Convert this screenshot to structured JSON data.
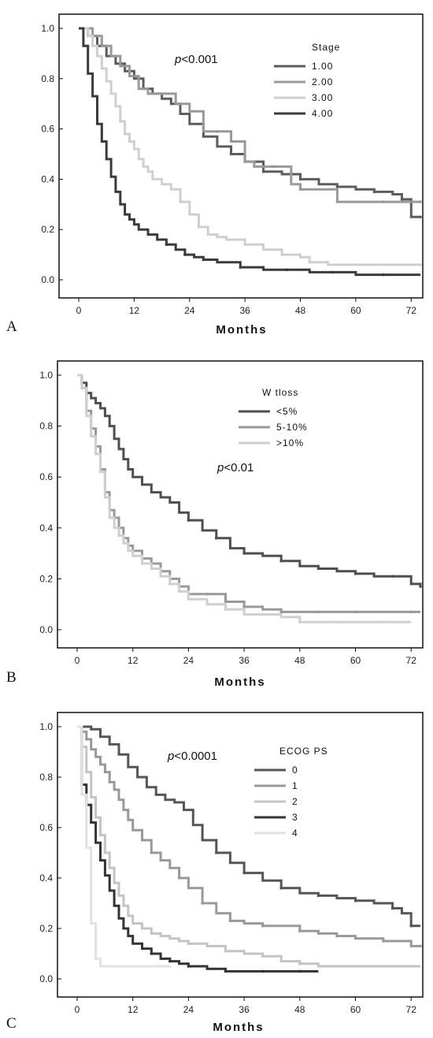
{
  "chart_data": [
    {
      "type": "line",
      "panel": "A",
      "xlabel": "Months",
      "xlim": [
        0,
        74
      ],
      "ylim": [
        0,
        1.0
      ],
      "xticks": [
        "0",
        "12",
        "24",
        "36",
        "48",
        "60",
        "72"
      ],
      "yticks": [
        "0.0",
        "0.2",
        "0.4",
        "0.6",
        "0.8",
        "1.0"
      ],
      "pvalue": {
        "prefix": "p",
        "text": "<0.001"
      },
      "legend": {
        "title": "Stage",
        "placement": "top-right"
      },
      "series": [
        {
          "name": "1.00",
          "color": "#5c5c5c",
          "x": [
            0,
            2,
            4,
            6,
            8,
            10,
            12,
            14,
            16,
            18,
            20,
            22,
            24,
            27,
            30,
            33,
            36,
            40,
            44,
            48,
            52,
            56,
            60,
            64,
            68,
            70,
            72,
            74
          ],
          "y": [
            1.0,
            0.97,
            0.93,
            0.89,
            0.86,
            0.83,
            0.8,
            0.76,
            0.74,
            0.72,
            0.7,
            0.66,
            0.62,
            0.57,
            0.53,
            0.5,
            0.47,
            0.43,
            0.42,
            0.4,
            0.38,
            0.37,
            0.36,
            0.35,
            0.34,
            0.32,
            0.25,
            0.25
          ]
        },
        {
          "name": "2.00",
          "color": "#999999",
          "x": [
            0,
            1,
            3,
            5,
            7,
            9,
            11,
            13,
            15,
            17,
            19,
            21,
            24,
            27,
            30,
            33,
            36,
            38,
            42,
            46,
            48,
            52,
            56,
            60,
            66,
            72,
            74
          ],
          "y": [
            1.0,
            1.0,
            0.97,
            0.93,
            0.89,
            0.85,
            0.81,
            0.76,
            0.74,
            0.74,
            0.74,
            0.7,
            0.67,
            0.59,
            0.59,
            0.55,
            0.47,
            0.45,
            0.45,
            0.38,
            0.36,
            0.36,
            0.31,
            0.31,
            0.31,
            0.31,
            0.31
          ]
        },
        {
          "name": "3.00",
          "color": "#cfcfcf",
          "x": [
            0,
            2,
            3,
            4,
            5,
            6,
            7,
            8,
            9,
            10,
            11,
            12,
            13,
            14,
            15,
            16,
            18,
            20,
            22,
            24,
            26,
            28,
            30,
            32,
            36,
            40,
            44,
            48,
            50,
            54,
            60,
            66,
            74
          ],
          "y": [
            1.0,
            0.97,
            0.93,
            0.89,
            0.84,
            0.79,
            0.74,
            0.69,
            0.63,
            0.58,
            0.55,
            0.52,
            0.48,
            0.45,
            0.43,
            0.4,
            0.38,
            0.36,
            0.31,
            0.26,
            0.21,
            0.18,
            0.17,
            0.16,
            0.14,
            0.12,
            0.1,
            0.09,
            0.07,
            0.06,
            0.06,
            0.06,
            0.06
          ]
        },
        {
          "name": "4.00",
          "color": "#3a3a3a",
          "x": [
            0,
            1,
            2,
            3,
            4,
            5,
            6,
            7,
            8,
            9,
            10,
            11,
            12,
            13,
            15,
            17,
            19,
            21,
            23,
            25,
            27,
            30,
            35,
            40,
            45,
            50,
            55,
            60,
            66,
            74
          ],
          "y": [
            1.0,
            0.93,
            0.82,
            0.73,
            0.62,
            0.55,
            0.48,
            0.41,
            0.35,
            0.3,
            0.26,
            0.24,
            0.22,
            0.2,
            0.18,
            0.16,
            0.14,
            0.12,
            0.1,
            0.09,
            0.08,
            0.07,
            0.05,
            0.04,
            0.04,
            0.03,
            0.03,
            0.02,
            0.02,
            0.02
          ]
        }
      ]
    },
    {
      "type": "line",
      "panel": "B",
      "xlabel": "Months",
      "xlim": [
        0,
        74
      ],
      "ylim": [
        0,
        1.0
      ],
      "xticks": [
        "0",
        "12",
        "24",
        "36",
        "48",
        "60",
        "72"
      ],
      "yticks": [
        "0.0",
        "0.2",
        "0.4",
        "0.6",
        "0.8",
        "1.0"
      ],
      "pvalue": {
        "prefix": "p",
        "text": "<0.01"
      },
      "legend": {
        "title": "W tloss",
        "placement": "top-right"
      },
      "series": [
        {
          "name": "<5%",
          "color": "#4f4f4f",
          "x": [
            0,
            1,
            2,
            3,
            4,
            5,
            6,
            7,
            8,
            9,
            10,
            11,
            12,
            14,
            16,
            18,
            20,
            22,
            24,
            27,
            30,
            33,
            36,
            40,
            44,
            48,
            52,
            56,
            60,
            64,
            68,
            72,
            74
          ],
          "y": [
            1.0,
            0.97,
            0.93,
            0.91,
            0.89,
            0.87,
            0.84,
            0.8,
            0.75,
            0.71,
            0.67,
            0.63,
            0.6,
            0.57,
            0.54,
            0.52,
            0.5,
            0.46,
            0.43,
            0.39,
            0.36,
            0.32,
            0.3,
            0.29,
            0.27,
            0.25,
            0.24,
            0.23,
            0.22,
            0.21,
            0.21,
            0.18,
            0.17
          ]
        },
        {
          "name": "5-10%",
          "color": "#999999",
          "x": [
            0,
            1,
            2,
            3,
            4,
            5,
            6,
            7,
            8,
            9,
            10,
            11,
            12,
            14,
            16,
            18,
            20,
            22,
            24,
            28,
            32,
            36,
            40,
            44,
            48,
            52,
            56,
            60,
            66,
            72,
            74
          ],
          "y": [
            1.0,
            0.95,
            0.86,
            0.79,
            0.72,
            0.63,
            0.54,
            0.47,
            0.44,
            0.4,
            0.36,
            0.33,
            0.31,
            0.28,
            0.26,
            0.23,
            0.2,
            0.17,
            0.14,
            0.14,
            0.11,
            0.09,
            0.08,
            0.07,
            0.07,
            0.07,
            0.07,
            0.07,
            0.07,
            0.07,
            0.07
          ]
        },
        {
          "name": ">10%",
          "color": "#cfcfcf",
          "x": [
            0,
            1,
            2,
            3,
            4,
            5,
            6,
            7,
            8,
            9,
            10,
            11,
            12,
            14,
            16,
            18,
            20,
            22,
            24,
            28,
            32,
            36,
            40,
            44,
            48,
            52,
            56,
            60,
            66,
            72
          ],
          "y": [
            1.0,
            0.95,
            0.84,
            0.76,
            0.69,
            0.62,
            0.52,
            0.44,
            0.4,
            0.37,
            0.34,
            0.31,
            0.29,
            0.26,
            0.24,
            0.21,
            0.18,
            0.15,
            0.12,
            0.1,
            0.08,
            0.06,
            0.06,
            0.05,
            0.03,
            0.03,
            0.03,
            0.03,
            0.03,
            0.03
          ]
        }
      ]
    },
    {
      "type": "line",
      "panel": "C",
      "xlabel": "Months",
      "xlim": [
        0,
        74
      ],
      "ylim": [
        0,
        1.0
      ],
      "xticks": [
        "0",
        "12",
        "24",
        "36",
        "48",
        "60",
        "72"
      ],
      "yticks": [
        "0.0",
        "0.2",
        "0.4",
        "0.6",
        "0.8",
        "1.0"
      ],
      "pvalue": {
        "prefix": "p",
        "text": "<0.0001"
      },
      "legend": {
        "title": "ECOG PS",
        "placement": "top-right"
      },
      "series": [
        {
          "name": "0",
          "color": "#555555",
          "x": [
            0,
            2,
            3,
            5,
            7,
            9,
            11,
            13,
            15,
            17,
            19,
            21,
            23,
            25,
            27,
            30,
            33,
            36,
            40,
            44,
            48,
            52,
            56,
            60,
            64,
            68,
            70,
            72,
            74
          ],
          "y": [
            1.0,
            1.0,
            0.99,
            0.96,
            0.93,
            0.89,
            0.84,
            0.8,
            0.76,
            0.73,
            0.71,
            0.7,
            0.67,
            0.61,
            0.55,
            0.5,
            0.46,
            0.42,
            0.39,
            0.36,
            0.34,
            0.33,
            0.32,
            0.31,
            0.3,
            0.28,
            0.26,
            0.21,
            0.21
          ]
        },
        {
          "name": "1",
          "color": "#999999",
          "x": [
            0,
            1,
            2,
            3,
            4,
            5,
            6,
            7,
            8,
            9,
            10,
            11,
            12,
            14,
            16,
            18,
            20,
            22,
            24,
            27,
            30,
            33,
            36,
            40,
            44,
            48,
            52,
            56,
            60,
            66,
            72,
            74
          ],
          "y": [
            1.0,
            0.98,
            0.95,
            0.91,
            0.88,
            0.85,
            0.82,
            0.78,
            0.75,
            0.71,
            0.67,
            0.63,
            0.59,
            0.55,
            0.5,
            0.47,
            0.44,
            0.4,
            0.36,
            0.3,
            0.26,
            0.23,
            0.22,
            0.21,
            0.21,
            0.19,
            0.18,
            0.17,
            0.16,
            0.15,
            0.13,
            0.13
          ]
        },
        {
          "name": "2",
          "color": "#c4c4c4",
          "x": [
            0,
            1,
            2,
            3,
            4,
            5,
            6,
            7,
            8,
            9,
            10,
            11,
            12,
            14,
            16,
            18,
            20,
            22,
            24,
            28,
            32,
            36,
            40,
            44,
            48,
            52,
            56,
            60,
            66,
            74
          ],
          "y": [
            1.0,
            0.92,
            0.82,
            0.72,
            0.64,
            0.57,
            0.5,
            0.44,
            0.38,
            0.33,
            0.29,
            0.25,
            0.22,
            0.2,
            0.18,
            0.17,
            0.16,
            0.15,
            0.14,
            0.13,
            0.11,
            0.1,
            0.09,
            0.07,
            0.06,
            0.05,
            0.05,
            0.05,
            0.05,
            0.05
          ]
        },
        {
          "name": "3",
          "color": "#333333",
          "x": [
            0,
            1,
            2,
            3,
            4,
            5,
            6,
            7,
            8,
            9,
            10,
            11,
            12,
            14,
            16,
            18,
            20,
            22,
            24,
            28,
            32,
            36,
            40,
            44,
            48,
            52
          ],
          "y": [
            1.0,
            0.77,
            0.69,
            0.62,
            0.54,
            0.47,
            0.41,
            0.35,
            0.29,
            0.24,
            0.2,
            0.17,
            0.14,
            0.12,
            0.1,
            0.08,
            0.07,
            0.06,
            0.05,
            0.04,
            0.03,
            0.03,
            0.03,
            0.03,
            0.03,
            0.03
          ]
        },
        {
          "name": "4",
          "color": "#e2e2e2",
          "x": [
            0,
            1,
            2,
            3,
            4,
            5,
            8,
            12,
            16,
            20
          ],
          "y": [
            1.0,
            0.73,
            0.52,
            0.22,
            0.08,
            0.05,
            0.05,
            0.05,
            0.05,
            0.05
          ]
        }
      ]
    }
  ]
}
